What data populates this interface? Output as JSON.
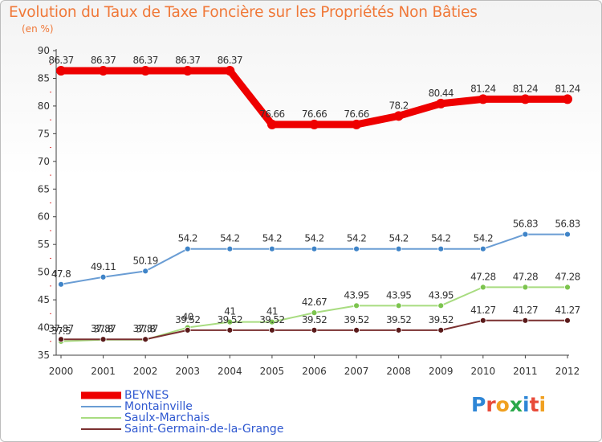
{
  "title": "Evolution du Taux de Taxe Foncière sur les Propriétés Non Bâties",
  "subtitle": "(en %)",
  "brand": "Proxiti",
  "colors": {
    "title": "#f07838",
    "legend_text": "#2f58d0",
    "axis": "#404040"
  },
  "chart_data": {
    "type": "line",
    "title": "Evolution du Taux de Taxe Foncière sur les Propriétés Non Bâties",
    "subtitle": "(en %)",
    "xlabel": "",
    "ylabel": "",
    "x": [
      "2000",
      "2001",
      "2002",
      "2003",
      "2004",
      "2005",
      "2006",
      "2007",
      "2008",
      "2009",
      "2010",
      "2011",
      "2012"
    ],
    "ylim": [
      35,
      90
    ],
    "yticks": [
      35,
      40,
      45,
      50,
      55,
      60,
      65,
      70,
      75,
      80,
      85,
      90
    ],
    "grid": false,
    "legend_position": "bottom",
    "series": [
      {
        "name": "BEYNES",
        "color": "#ee0000",
        "style": "thick",
        "values": [
          86.37,
          86.37,
          86.37,
          86.37,
          86.37,
          76.66,
          76.66,
          76.66,
          78.2,
          80.44,
          81.24,
          81.24,
          81.24
        ],
        "labels": [
          "86.37",
          "86.37",
          "86.37",
          "86.37",
          "86.37",
          "76.66",
          "76.66",
          "76.66",
          "78.2",
          "80.44",
          "81.24",
          "81.24",
          "81.24"
        ]
      },
      {
        "name": "Montainville",
        "color": "#6a9dd4",
        "point_color": "#3f84c8",
        "style": "thin",
        "values": [
          47.8,
          49.11,
          50.19,
          54.2,
          54.2,
          54.2,
          54.2,
          54.2,
          54.2,
          54.2,
          54.2,
          56.83,
          56.83
        ],
        "labels": [
          "47.8",
          "49.11",
          "50.19",
          "54.2",
          "54.2",
          "54.2",
          "54.2",
          "54.2",
          "54.2",
          "54.2",
          "54.2",
          "56.83",
          "56.83"
        ]
      },
      {
        "name": "Saulx-Marchais",
        "color": "#a8dc80",
        "point_color": "#7cc44e",
        "style": "thin",
        "values": [
          37.5,
          37.8,
          37.8,
          40.0,
          41.0,
          41.0,
          42.67,
          43.95,
          43.95,
          43.95,
          47.28,
          47.28,
          47.28
        ],
        "labels": [
          "37.5",
          "37.8",
          "37.8",
          "40",
          "41",
          "41",
          "42.67",
          "43.95",
          "43.95",
          "43.95",
          "47.28",
          "47.28",
          "47.28"
        ]
      },
      {
        "name": "Saint-Germain-de-la-Grange",
        "color": "#7a3030",
        "point_color": "#5a1a1a",
        "style": "thin",
        "values": [
          37.87,
          37.87,
          37.87,
          39.52,
          39.52,
          39.52,
          39.52,
          39.52,
          39.52,
          39.52,
          41.27,
          41.27,
          41.27
        ],
        "labels": [
          "37.87",
          "37.87",
          "37.87",
          "39.52",
          "39.52",
          "39.52",
          "39.52",
          "39.52",
          "39.52",
          "39.52",
          "41.27",
          "41.27",
          "41.27"
        ]
      }
    ]
  }
}
